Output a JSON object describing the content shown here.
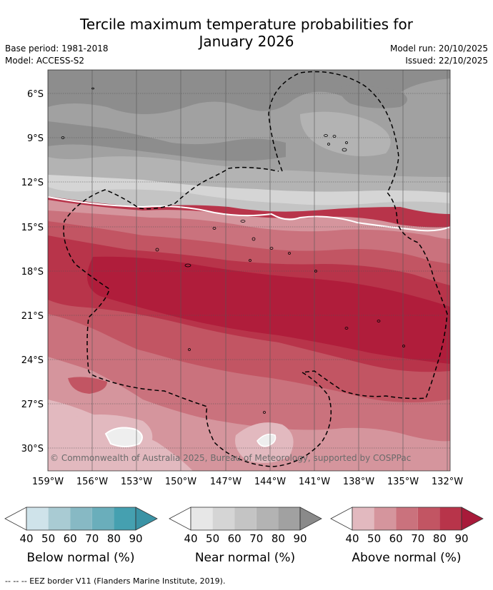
{
  "title_line1": "Tercile maximum temperature probabilities for",
  "title_line2": "January 2026",
  "meta_left": {
    "base_period": "Base period: 1981-2018",
    "model": "Model: ACCESS-S2"
  },
  "meta_right": {
    "model_run": "Model run: 20/10/2025",
    "issued": "Issued: 22/10/2025"
  },
  "lat_labels": [
    "6°S",
    "9°S",
    "12°S",
    "15°S",
    "18°S",
    "21°S",
    "24°S",
    "27°S",
    "30°S"
  ],
  "lon_labels": [
    "159°W",
    "156°W",
    "153°W",
    "150°W",
    "147°W",
    "144°W",
    "141°W",
    "138°W",
    "135°W",
    "132°W"
  ],
  "copyright": "© Commonwealth of Australia 2025, Bureau of Meteorology, supported by COSPPac",
  "legends": [
    {
      "caption": "Below normal (%)",
      "ticks": [
        "40",
        "50",
        "60",
        "70",
        "80",
        "90"
      ],
      "colors": [
        "#cfe3ea",
        "#a9cbd3",
        "#87b9c4",
        "#6aaebb",
        "#45a0b0"
      ]
    },
    {
      "caption": "Near normal (%)",
      "ticks": [
        "40",
        "50",
        "60",
        "70",
        "80",
        "90"
      ],
      "colors": [
        "#e7e7e7",
        "#d5d5d5",
        "#c4c4c4",
        "#b3b3b3",
        "#a1a1a1"
      ]
    },
    {
      "caption": "Above normal (%)",
      "ticks": [
        "40",
        "50",
        "60",
        "70",
        "80",
        "90"
      ],
      "colors": [
        "#e2b9bf",
        "#d5959d",
        "#ca727d",
        "#c25563",
        "#b8344a"
      ]
    }
  ],
  "footnote": "-- -- -- EEZ border V11 (Flanders Marine Institute, 2019)."
}
